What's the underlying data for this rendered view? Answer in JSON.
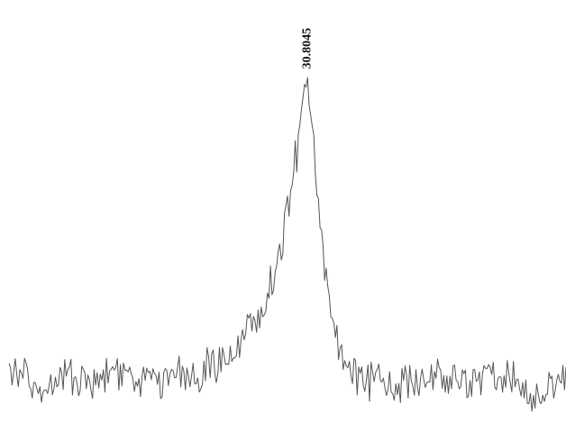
{
  "chart_data": {
    "type": "line",
    "title": "",
    "xlabel": "",
    "ylabel": "",
    "grid": false,
    "axes_visible": false,
    "xlim": [
      0,
      1
    ],
    "ylim": [
      0,
      1
    ],
    "series": [
      {
        "color": "#555555",
        "points": [
          [
            0.0,
            0.12
          ],
          [
            0.05,
            0.1
          ],
          [
            0.1,
            0.11
          ],
          [
            0.15,
            0.1
          ],
          [
            0.2,
            0.12
          ],
          [
            0.25,
            0.1
          ],
          [
            0.3,
            0.11
          ],
          [
            0.35,
            0.13
          ],
          [
            0.4,
            0.17
          ],
          [
            0.44,
            0.24
          ],
          [
            0.48,
            0.37
          ],
          [
            0.5,
            0.52
          ],
          [
            0.515,
            0.66
          ],
          [
            0.525,
            0.74
          ],
          [
            0.533,
            0.84
          ],
          [
            0.54,
            0.77
          ],
          [
            0.55,
            0.63
          ],
          [
            0.56,
            0.46
          ],
          [
            0.575,
            0.3
          ],
          [
            0.6,
            0.15
          ],
          [
            0.63,
            0.11
          ],
          [
            0.7,
            0.1
          ],
          [
            0.75,
            0.11
          ],
          [
            0.8,
            0.11
          ],
          [
            0.85,
            0.1
          ],
          [
            0.9,
            0.12
          ],
          [
            0.93,
            0.06
          ],
          [
            0.96,
            0.07
          ],
          [
            1.0,
            0.12
          ]
        ]
      }
    ],
    "annotations": [
      {
        "text": "30.8045",
        "x": 0.533,
        "y": 0.84,
        "rotation": -90
      }
    ]
  }
}
